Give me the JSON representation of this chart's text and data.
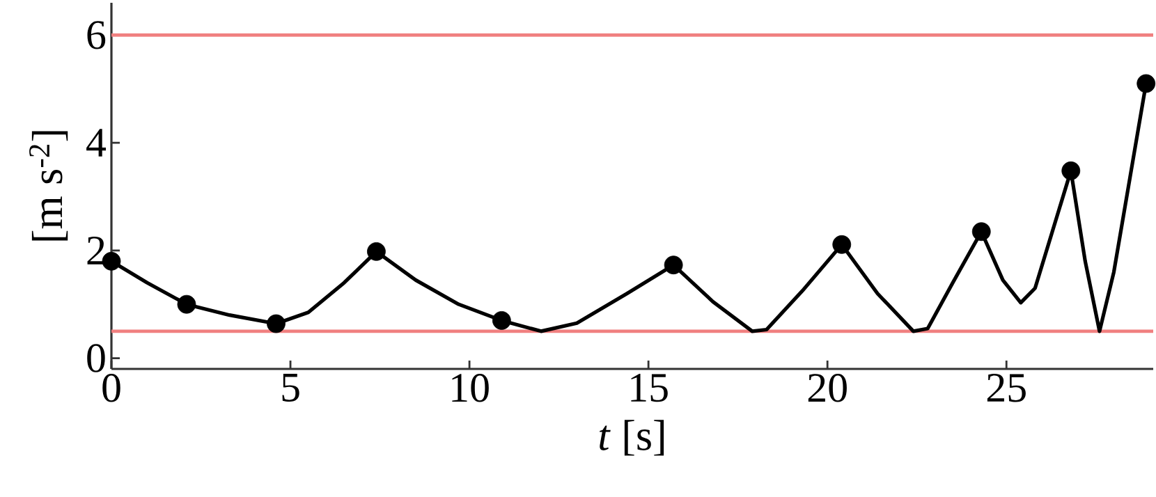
{
  "chart_data": {
    "type": "line",
    "xlabel": "*t* [s]",
    "ylabel": "[m s$^{-2}$]",
    "xlim": [
      0,
      29.1
    ],
    "ylim": [
      -0.2,
      6.6
    ],
    "xticks": [
      0,
      5,
      10,
      15,
      20,
      25
    ],
    "yticks": [
      0,
      2,
      4,
      6
    ],
    "series": [
      {
        "type": "line",
        "color": "#000000",
        "marker": "none",
        "line_style": "solid",
        "x": [
          0,
          1,
          2.1,
          3.3,
          4.6,
          5.5,
          6.5,
          7.4,
          8.5,
          9.7,
          10.9,
          12.0,
          13.0,
          14.4,
          15.7,
          16.8,
          17.9,
          18.3,
          19.3,
          20.4,
          21.4,
          22.4,
          22.8,
          23.5,
          24.3,
          24.9,
          25.4,
          25.8,
          26.8,
          27.2,
          27.6,
          28.0,
          28.9
        ],
        "values": [
          1.8,
          1.4,
          1.0,
          0.8,
          0.64,
          0.85,
          1.4,
          1.98,
          1.45,
          1.0,
          0.7,
          0.5,
          0.65,
          1.2,
          1.73,
          1.05,
          0.5,
          0.53,
          1.25,
          2.11,
          1.2,
          0.5,
          0.55,
          1.4,
          2.35,
          1.45,
          1.03,
          1.3,
          3.48,
          1.8,
          0.5,
          1.6,
          5.1
        ]
      },
      {
        "type": "scatter",
        "color": "#000000",
        "marker": "circle",
        "x": [
          0,
          2.1,
          4.6,
          7.4,
          10.9,
          15.7,
          20.4,
          24.3,
          26.8,
          28.9
        ],
        "values": [
          1.8,
          1.0,
          0.64,
          1.98,
          0.7,
          1.73,
          2.11,
          2.35,
          3.48,
          5.1
        ]
      }
    ],
    "ref_lines": [
      {
        "axis": "y",
        "value": 6,
        "color": "#f08080"
      },
      {
        "axis": "y",
        "value": 0.5,
        "color": "#f08080"
      }
    ]
  }
}
